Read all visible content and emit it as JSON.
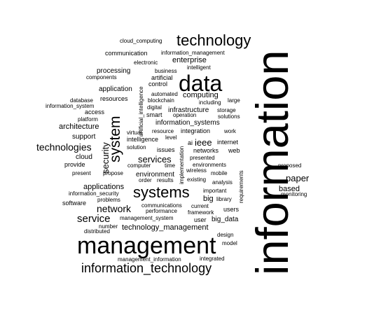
{
  "text_color": "#000000",
  "background": "#ffffff",
  "words": [
    {
      "text": "information",
      "weight": 100,
      "vertical": true
    },
    {
      "text": "management",
      "weight": 55
    },
    {
      "text": "data",
      "weight": 50
    },
    {
      "text": "technology",
      "weight": 36
    },
    {
      "text": "systems",
      "weight": 34
    },
    {
      "text": "system",
      "weight": 33,
      "vertical": true
    },
    {
      "text": "information_technology",
      "weight": 28
    },
    {
      "text": "service",
      "weight": 22
    },
    {
      "text": "network",
      "weight": 20
    },
    {
      "text": "technologies",
      "weight": 20
    },
    {
      "text": "security",
      "weight": 19,
      "vertical": true
    },
    {
      "text": "services",
      "weight": 18
    },
    {
      "text": "paper",
      "weight": 18
    },
    {
      "text": "ieee",
      "weight": 18
    },
    {
      "text": "computing",
      "weight": 16
    },
    {
      "text": "applications",
      "weight": 15
    },
    {
      "text": "technology_management",
      "weight": 15
    },
    {
      "text": "enterprise",
      "weight": 14
    },
    {
      "text": "architecture",
      "weight": 14
    },
    {
      "text": "based",
      "weight": 14
    },
    {
      "text": "information_systems",
      "weight": 13
    },
    {
      "text": "big",
      "weight": 13
    },
    {
      "text": "big_data",
      "weight": 13
    },
    {
      "text": "infrastructure",
      "weight": 12
    },
    {
      "text": "environment",
      "weight": 12
    },
    {
      "text": "application",
      "weight": 12
    },
    {
      "text": "processing",
      "weight": 12
    },
    {
      "text": "cloud",
      "weight": 12
    },
    {
      "text": "support",
      "weight": 12
    },
    {
      "text": "access",
      "weight": 11
    },
    {
      "text": "provide",
      "weight": 11
    },
    {
      "text": "software",
      "weight": 11
    },
    {
      "text": "users",
      "weight": 11
    },
    {
      "text": "intelligence",
      "weight": 11
    },
    {
      "text": "issues",
      "weight": 11
    },
    {
      "text": "internet",
      "weight": 11
    },
    {
      "text": "networks",
      "weight": 11
    },
    {
      "text": "smart",
      "weight": 11
    },
    {
      "text": "resources",
      "weight": 11
    },
    {
      "text": "web",
      "weight": 11
    },
    {
      "text": "proposed",
      "weight": 10
    },
    {
      "text": "requirements",
      "weight": 10,
      "vertical": true
    },
    {
      "text": "control",
      "weight": 10
    },
    {
      "text": "user",
      "weight": 10
    },
    {
      "text": "integration",
      "weight": 10
    },
    {
      "text": "artificial",
      "weight": 10
    },
    {
      "text": "ai",
      "weight": 10
    },
    {
      "text": "communication",
      "weight": 10
    },
    {
      "text": "analysis",
      "weight": 10
    },
    {
      "text": "electronic",
      "weight": 9
    },
    {
      "text": "business",
      "weight": 9
    },
    {
      "text": "intelligent",
      "weight": 9
    },
    {
      "text": "components",
      "weight": 9
    },
    {
      "text": "information_management",
      "weight": 9
    },
    {
      "text": "cloud_computing",
      "weight": 9
    },
    {
      "text": "automated",
      "weight": 9
    },
    {
      "text": "blockchain",
      "weight": 9
    },
    {
      "text": "digital",
      "weight": 9
    },
    {
      "text": "operation",
      "weight": 9
    },
    {
      "text": "large",
      "weight": 9
    },
    {
      "text": "including",
      "weight": 9
    },
    {
      "text": "storage",
      "weight": 9
    },
    {
      "text": "solutions",
      "weight": 9
    },
    {
      "text": "database",
      "weight": 9
    },
    {
      "text": "information_system",
      "weight": 9
    },
    {
      "text": "platform",
      "weight": 9
    },
    {
      "text": "virtual",
      "weight": 9
    },
    {
      "text": "resource",
      "weight": 9
    },
    {
      "text": "work",
      "weight": 9
    },
    {
      "text": "level",
      "weight": 9
    },
    {
      "text": "solution",
      "weight": 9
    },
    {
      "text": "presented",
      "weight": 9
    },
    {
      "text": "computer",
      "weight": 9
    },
    {
      "text": "time",
      "weight": 9
    },
    {
      "text": "environments",
      "weight": 9
    },
    {
      "text": "present",
      "weight": 9
    },
    {
      "text": "propose",
      "weight": 9
    },
    {
      "text": "wireless",
      "weight": 9
    },
    {
      "text": "mobile",
      "weight": 9
    },
    {
      "text": "order",
      "weight": 9
    },
    {
      "text": "results",
      "weight": 9
    },
    {
      "text": "existing",
      "weight": 9
    },
    {
      "text": "information_security",
      "weight": 9
    },
    {
      "text": "problems",
      "weight": 9
    },
    {
      "text": "important",
      "weight": 9
    },
    {
      "text": "library",
      "weight": 9
    },
    {
      "text": "communications",
      "weight": 9
    },
    {
      "text": "current",
      "weight": 9
    },
    {
      "text": "performance",
      "weight": 9
    },
    {
      "text": "framework",
      "weight": 9
    },
    {
      "text": "management_system",
      "weight": 9
    },
    {
      "text": "number",
      "weight": 9
    },
    {
      "text": "distributed",
      "weight": 9
    },
    {
      "text": "design",
      "weight": 9
    },
    {
      "text": "model",
      "weight": 9
    },
    {
      "text": "management_information",
      "weight": 9
    },
    {
      "text": "integrated",
      "weight": 9
    },
    {
      "text": "monitoring",
      "weight": 9
    },
    {
      "text": "artificial_intelligence",
      "weight": 9,
      "vertical": true
    },
    {
      "text": "implementation",
      "weight": 9,
      "vertical": true
    }
  ]
}
